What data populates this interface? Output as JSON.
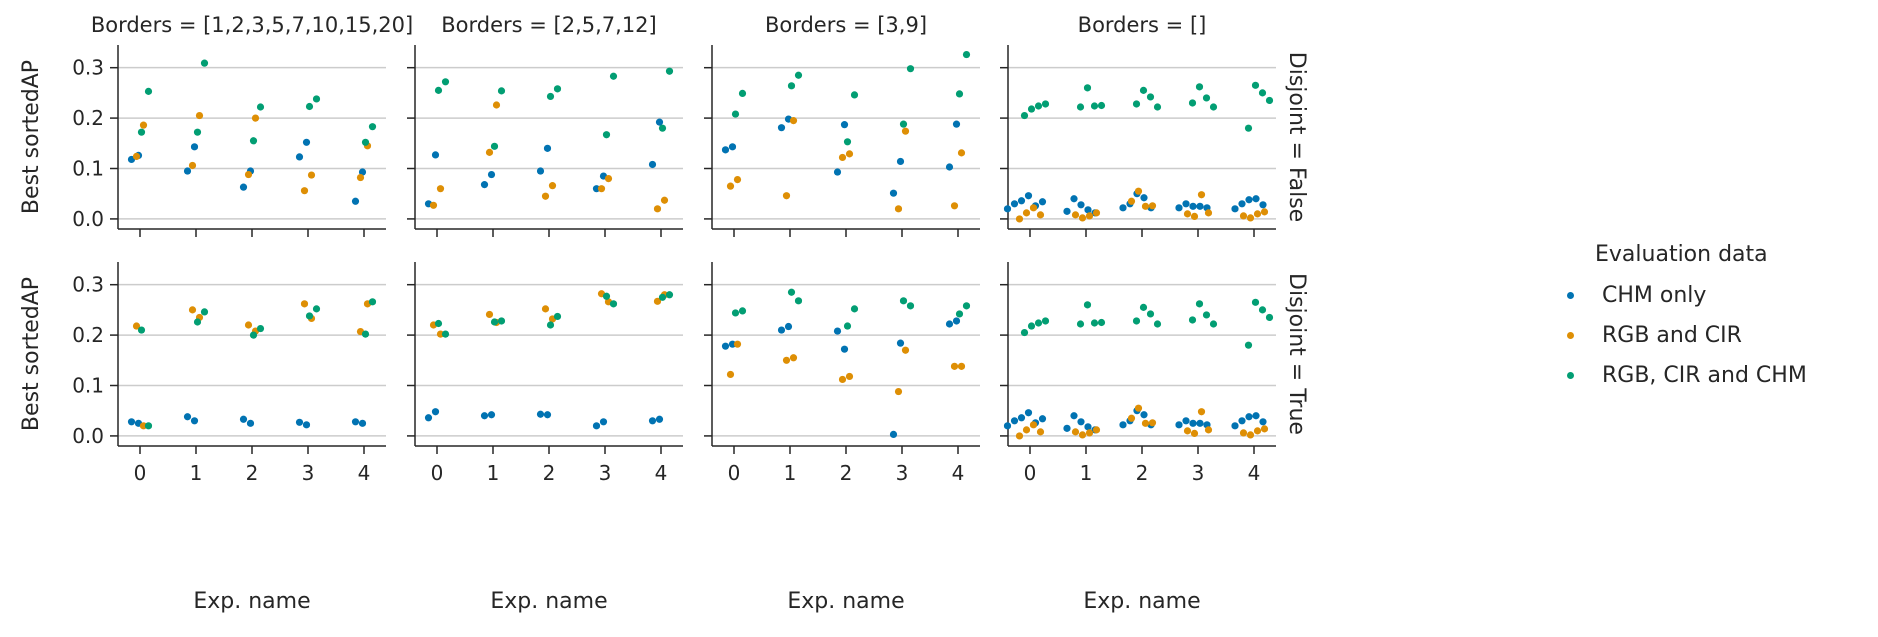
{
  "chart_data": {
    "type": "scatter",
    "col_titles": [
      "Borders = [1,2,3,5,7,10,15,20]",
      "Borders = [2,5,7,12]",
      "Borders = [3,9]",
      "Borders = []"
    ],
    "row_titles": [
      "Disjoint = False",
      "Disjoint = True"
    ],
    "xlabel": "Exp. name",
    "ylabel": "Best sortedAP",
    "x_categories": [
      "0",
      "1",
      "2",
      "3",
      "4"
    ],
    "y_ticks": [
      "0.0",
      "0.1",
      "0.2",
      "0.3"
    ],
    "ylim": [
      -0.02,
      0.345
    ],
    "grid": "horizontal",
    "legend": {
      "title": "Evaluation data",
      "placement": "right",
      "entries": [
        "CHM only",
        "RGB and CIR",
        "RGB, CIR and CHM"
      ]
    },
    "colors": {
      "CHM only": "#0173b2",
      "RGB and CIR": "#de8f05",
      "RGB, CIR and CHM": "#029e73"
    },
    "panels": [
      {
        "row": 0,
        "col": 0,
        "series": [
          {
            "name": "CHM only",
            "values": [
              [
                0.118,
                0.126
              ],
              [
                0.095,
                0.143
              ],
              [
                0.063,
                0.095
              ],
              [
                0.123,
                0.152
              ],
              [
                0.035,
                0.093
              ]
            ]
          },
          {
            "name": "RGB and CIR",
            "values": [
              [
                0.124,
                0.186
              ],
              [
                0.106,
                0.205
              ],
              [
                0.088,
                0.2
              ],
              [
                0.056,
                0.087
              ],
              [
                0.082,
                0.145
              ]
            ]
          },
          {
            "name": "RGB, CIR and CHM",
            "values": [
              [
                0.172,
                0.253
              ],
              [
                0.172,
                0.309
              ],
              [
                0.155,
                0.222
              ],
              [
                0.223,
                0.238
              ],
              [
                0.152,
                0.183
              ]
            ]
          }
        ]
      },
      {
        "row": 0,
        "col": 1,
        "series": [
          {
            "name": "CHM only",
            "values": [
              [
                0.03,
                0.127
              ],
              [
                0.068,
                0.088
              ],
              [
                0.095,
                0.14
              ],
              [
                0.06,
                0.085
              ],
              [
                0.108,
                0.192
              ]
            ]
          },
          {
            "name": "RGB and CIR",
            "values": [
              [
                0.027,
                0.06
              ],
              [
                0.132,
                0.226
              ],
              [
                0.045,
                0.066
              ],
              [
                0.06,
                0.08
              ],
              [
                0.02,
                0.037
              ]
            ]
          },
          {
            "name": "RGB, CIR and CHM",
            "values": [
              [
                0.255,
                0.272
              ],
              [
                0.144,
                0.254
              ],
              [
                0.243,
                0.258
              ],
              [
                0.167,
                0.283
              ],
              [
                0.18,
                0.293
              ]
            ]
          }
        ]
      },
      {
        "row": 0,
        "col": 2,
        "series": [
          {
            "name": "CHM only",
            "values": [
              [
                0.137,
                0.143
              ],
              [
                0.181,
                0.198
              ],
              [
                0.093,
                0.187
              ],
              [
                0.051,
                0.114
              ],
              [
                0.103,
                0.188
              ]
            ]
          },
          {
            "name": "RGB and CIR",
            "values": [
              [
                0.065,
                0.078
              ],
              [
                0.046,
                0.195
              ],
              [
                0.122,
                0.129
              ],
              [
                0.02,
                0.174
              ],
              [
                0.026,
                0.131
              ]
            ]
          },
          {
            "name": "RGB, CIR and CHM",
            "values": [
              [
                0.208,
                0.249
              ],
              [
                0.264,
                0.285
              ],
              [
                0.153,
                0.246
              ],
              [
                0.188,
                0.298
              ],
              [
                0.248,
                0.326
              ]
            ]
          }
        ]
      },
      {
        "row": 0,
        "col": 3,
        "series": [
          {
            "name": "CHM only",
            "values": [
              [
                0.02,
                0.03,
                0.036,
                0.046,
                0.026,
                0.034
              ],
              [
                0.015,
                0.04,
                0.028,
                0.018,
                0.012
              ],
              [
                0.022,
                0.03,
                0.05,
                0.042,
                0.022
              ],
              [
                0.022,
                0.03,
                0.025,
                0.025,
                0.022
              ],
              [
                0.02,
                0.03,
                0.038,
                0.04,
                0.028
              ]
            ]
          },
          {
            "name": "RGB and CIR",
            "values": [
              [
                0.0,
                0.012,
                0.022,
                0.008
              ],
              [
                0.008,
                0.002,
                0.006,
                0.012
              ],
              [
                0.035,
                0.055,
                0.025,
                0.026
              ],
              [
                0.01,
                0.005,
                0.048,
                0.012
              ],
              [
                0.006,
                0.002,
                0.01,
                0.014
              ]
            ]
          },
          {
            "name": "RGB, CIR and CHM",
            "values": [
              [
                0.205,
                0.218,
                0.224,
                0.228
              ],
              [
                0.222,
                0.26,
                0.224,
                0.225
              ],
              [
                0.228,
                0.255,
                0.242,
                0.222
              ],
              [
                0.23,
                0.262,
                0.24,
                0.222
              ],
              [
                0.18,
                0.265,
                0.25,
                0.235
              ]
            ]
          }
        ]
      },
      {
        "row": 1,
        "col": 0,
        "series": [
          {
            "name": "CHM only",
            "values": [
              [
                0.028,
                0.025
              ],
              [
                0.038,
                0.03
              ],
              [
                0.033,
                0.025
              ],
              [
                0.027,
                0.022
              ],
              [
                0.028,
                0.025
              ]
            ]
          },
          {
            "name": "RGB and CIR",
            "values": [
              [
                0.218,
                0.02
              ],
              [
                0.25,
                0.235
              ],
              [
                0.22,
                0.208
              ],
              [
                0.262,
                0.233
              ],
              [
                0.207,
                0.262
              ]
            ]
          },
          {
            "name": "RGB, CIR and CHM",
            "values": [
              [
                0.21,
                0.02
              ],
              [
                0.226,
                0.246
              ],
              [
                0.2,
                0.213
              ],
              [
                0.238,
                0.252
              ],
              [
                0.202,
                0.266
              ]
            ]
          }
        ]
      },
      {
        "row": 1,
        "col": 1,
        "series": [
          {
            "name": "CHM only",
            "values": [
              [
                0.036,
                0.048
              ],
              [
                0.04,
                0.042
              ],
              [
                0.043,
                0.042
              ],
              [
                0.02,
                0.028
              ],
              [
                0.03,
                0.033
              ]
            ]
          },
          {
            "name": "RGB and CIR",
            "values": [
              [
                0.22,
                0.202
              ],
              [
                0.241,
                0.225
              ],
              [
                0.252,
                0.232
              ],
              [
                0.282,
                0.266
              ],
              [
                0.267,
                0.28
              ]
            ]
          },
          {
            "name": "RGB, CIR and CHM",
            "values": [
              [
                0.223,
                0.202
              ],
              [
                0.226,
                0.228
              ],
              [
                0.22,
                0.237
              ],
              [
                0.277,
                0.262
              ],
              [
                0.275,
                0.28
              ]
            ]
          }
        ]
      },
      {
        "row": 1,
        "col": 2,
        "series": [
          {
            "name": "CHM only",
            "values": [
              [
                0.178,
                0.182
              ],
              [
                0.21,
                0.217
              ],
              [
                0.208,
                0.172
              ],
              [
                0.003,
                0.184
              ],
              [
                0.222,
                0.228
              ]
            ]
          },
          {
            "name": "RGB and CIR",
            "values": [
              [
                0.122,
                0.182
              ],
              [
                0.15,
                0.155
              ],
              [
                0.112,
                0.118
              ],
              [
                0.088,
                0.17
              ],
              [
                0.138,
                0.138
              ]
            ]
          },
          {
            "name": "RGB, CIR and CHM",
            "values": [
              [
                0.244,
                0.248
              ],
              [
                0.285,
                0.268
              ],
              [
                0.218,
                0.252
              ],
              [
                0.268,
                0.258
              ],
              [
                0.242,
                0.258
              ]
            ]
          }
        ]
      },
      {
        "row": 1,
        "col": 3,
        "series": [
          {
            "name": "CHM only",
            "values": [
              [
                0.02,
                0.03,
                0.036,
                0.046,
                0.026,
                0.034
              ],
              [
                0.015,
                0.04,
                0.028,
                0.018,
                0.012
              ],
              [
                0.022,
                0.03,
                0.05,
                0.042,
                0.022
              ],
              [
                0.022,
                0.03,
                0.025,
                0.025,
                0.022
              ],
              [
                0.02,
                0.03,
                0.038,
                0.04,
                0.028
              ]
            ]
          },
          {
            "name": "RGB and CIR",
            "values": [
              [
                0.0,
                0.012,
                0.022,
                0.008
              ],
              [
                0.008,
                0.002,
                0.006,
                0.012
              ],
              [
                0.035,
                0.055,
                0.025,
                0.026
              ],
              [
                0.01,
                0.005,
                0.048,
                0.012
              ],
              [
                0.006,
                0.002,
                0.01,
                0.014
              ]
            ]
          },
          {
            "name": "RGB, CIR and CHM",
            "values": [
              [
                0.205,
                0.218,
                0.224,
                0.228
              ],
              [
                0.222,
                0.26,
                0.224,
                0.225
              ],
              [
                0.228,
                0.255,
                0.242,
                0.222
              ],
              [
                0.23,
                0.262,
                0.24,
                0.222
              ],
              [
                0.18,
                0.265,
                0.25,
                0.235
              ]
            ]
          }
        ]
      }
    ]
  }
}
